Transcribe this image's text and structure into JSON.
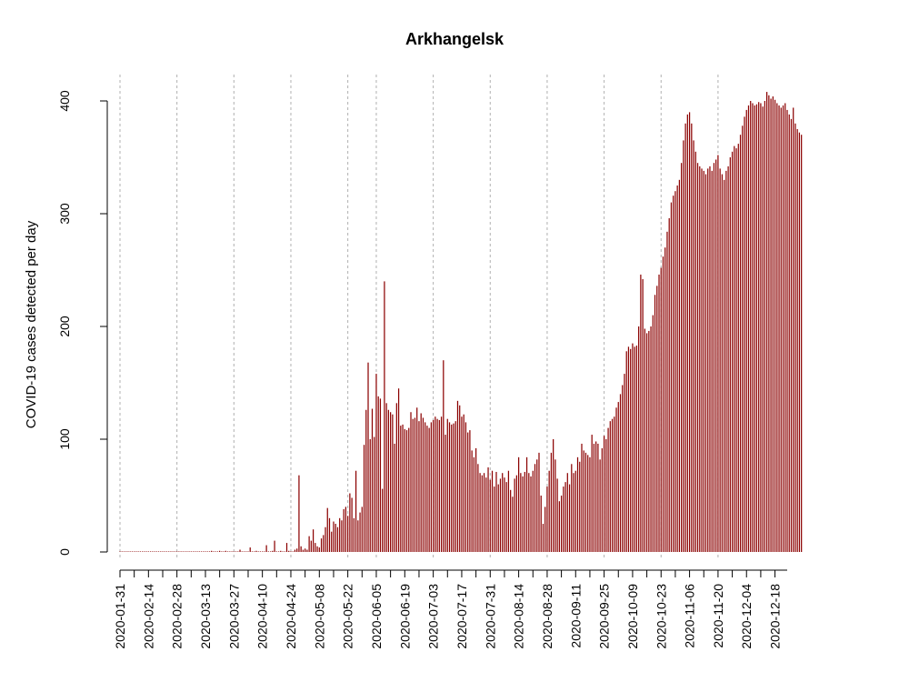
{
  "chart_data": {
    "type": "bar",
    "title": "Arkhangelsk",
    "xlabel": "",
    "ylabel": "COVID-19 cases detected per day",
    "ylim": [
      0,
      400
    ],
    "yticks": [
      0,
      100,
      200,
      300,
      400
    ],
    "grid": "vertical dotted lines at labeled dates",
    "colors": {
      "bar": "#8b0000",
      "grid": "#b0b0b0"
    },
    "start_date": "2020-01-31",
    "end_date": "2020-12-24",
    "xtick_labels": [
      "2020-01-31",
      "2020-02-14",
      "2020-02-28",
      "2020-03-13",
      "2020-03-27",
      "2020-04-10",
      "2020-04-24",
      "2020-05-08",
      "2020-05-22",
      "2020-06-05",
      "2020-06-19",
      "2020-07-03",
      "2020-07-17",
      "2020-07-31",
      "2020-08-14",
      "2020-08-28",
      "2020-09-11",
      "2020-09-25",
      "2020-10-09",
      "2020-10-23",
      "2020-11-06",
      "2020-11-20",
      "2020-12-04",
      "2020-12-18"
    ],
    "grid_dates": [
      "2020-01-31",
      "2020-02-28",
      "2020-03-27",
      "2020-04-24",
      "2020-05-22",
      "2020-06-05",
      "2020-07-03",
      "2020-07-31",
      "2020-08-28",
      "2020-09-25",
      "2020-10-23",
      "2020-11-20"
    ],
    "values": [
      0,
      0,
      0,
      0,
      0,
      0,
      0,
      0,
      0,
      0,
      0,
      0,
      0,
      0,
      0,
      0,
      0,
      0,
      0,
      0,
      0,
      0,
      0,
      0,
      0,
      0,
      0,
      0,
      0,
      0,
      0,
      0,
      0,
      0,
      0,
      0,
      0,
      0,
      0,
      0,
      0,
      0,
      0,
      0,
      0,
      1,
      0,
      0,
      0,
      1,
      0,
      0,
      1,
      0,
      0,
      0,
      0,
      0,
      0,
      2,
      0,
      0,
      0,
      0,
      4,
      0,
      0,
      1,
      0,
      0,
      0,
      0,
      6,
      0,
      0,
      1,
      10,
      0,
      0,
      1,
      0,
      0,
      8,
      1,
      0,
      0,
      2,
      3,
      68,
      5,
      2,
      3,
      2,
      14,
      10,
      20,
      8,
      5,
      4,
      12,
      15,
      22,
      39,
      30,
      18,
      27,
      25,
      22,
      30,
      28,
      38,
      40,
      32,
      52,
      48,
      30,
      72,
      28,
      35,
      40,
      95,
      126,
      168,
      100,
      127,
      102,
      158,
      138,
      136,
      56,
      240,
      132,
      126,
      124,
      122,
      96,
      132,
      145,
      112,
      113,
      109,
      108,
      110,
      124,
      118,
      119,
      128,
      116,
      123,
      119,
      115,
      112,
      110,
      115,
      117,
      120,
      118,
      117,
      120,
      170,
      104,
      118,
      115,
      113,
      114,
      116,
      134,
      130,
      120,
      122,
      115,
      106,
      108,
      90,
      84,
      92,
      78,
      70,
      68,
      70,
      66,
      75,
      64,
      72,
      58,
      71,
      60,
      65,
      70,
      66,
      62,
      72,
      55,
      49,
      65,
      68,
      84,
      70,
      67,
      71,
      84,
      70,
      67,
      72,
      78,
      82,
      88,
      50,
      25,
      40,
      58,
      72,
      88,
      100,
      82,
      65,
      45,
      50,
      58,
      62,
      70,
      60,
      78,
      70,
      72,
      84,
      80,
      96,
      90,
      88,
      86,
      84,
      104,
      96,
      98,
      96,
      82,
      92,
      103,
      100,
      110,
      116,
      118,
      120,
      128,
      133,
      140,
      148,
      158,
      178,
      182,
      180,
      185,
      182,
      183,
      200,
      246,
      242,
      198,
      194,
      196,
      200,
      210,
      228,
      236,
      246,
      252,
      262,
      270,
      284,
      296,
      310,
      316,
      320,
      325,
      330,
      345,
      365,
      380,
      388,
      390,
      380,
      365,
      355,
      345,
      342,
      340,
      338,
      335,
      340,
      342,
      338,
      345,
      348,
      352,
      340,
      335,
      330,
      338,
      342,
      350,
      355,
      360,
      358,
      362,
      370,
      378,
      386,
      392,
      396,
      400,
      398,
      396,
      397,
      399,
      398,
      395,
      400,
      408,
      405,
      402,
      404,
      401,
      398,
      396,
      394,
      396,
      398,
      392,
      388,
      384,
      394,
      380,
      375,
      372,
      370
    ]
  }
}
